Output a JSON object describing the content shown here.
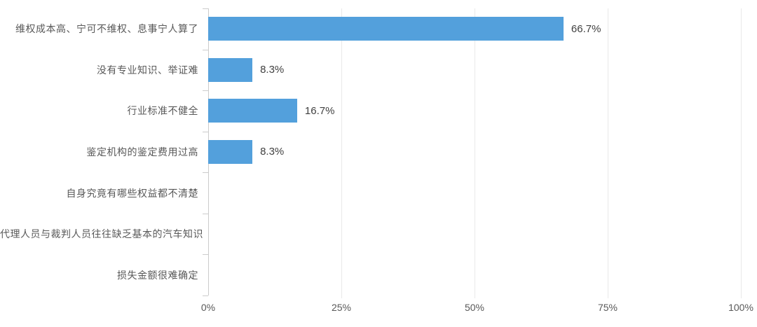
{
  "chart_data": {
    "type": "bar",
    "orientation": "horizontal",
    "title": "",
    "xlabel": "",
    "ylabel": "",
    "categories": [
      "维权成本高、宁可不维权、息事宁人算了",
      "没有专业知识、举证难",
      "行业标准不健全",
      "鉴定机构的鉴定费用过高",
      "自身究竟有哪些权益都不清楚",
      "代理人员与裁判人员往往缺乏基本的汽车知识",
      "损失金额很难确定"
    ],
    "values": [
      66.7,
      8.3,
      16.7,
      8.3,
      0,
      0,
      0
    ],
    "value_labels": [
      "66.7%",
      "8.3%",
      "16.7%",
      "8.3%",
      "",
      "",
      ""
    ],
    "x_ticks": [
      "0%",
      "25%",
      "50%",
      "75%",
      "100%"
    ],
    "xlim": [
      0,
      100
    ],
    "grid": "vertical-light",
    "legend": "none",
    "bar_color": "#53a0dc"
  },
  "colors": {
    "bar": "#53a0dc",
    "axis_line": "#cccccc",
    "gridline": "#e9e9e9",
    "category_text": "#595959",
    "value_text": "#404040",
    "background": "#ffffff"
  }
}
